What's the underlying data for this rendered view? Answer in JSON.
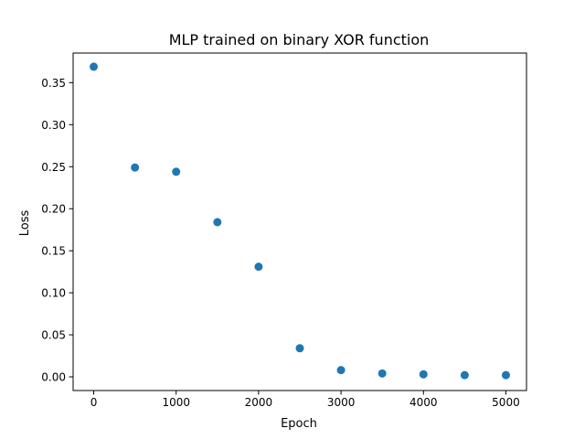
{
  "chart_data": {
    "type": "scatter",
    "title": "MLP trained on binary XOR function",
    "xlabel": "Epoch",
    "ylabel": "Loss",
    "x": [
      0,
      500,
      1000,
      1500,
      2000,
      2500,
      3000,
      3500,
      4000,
      4500,
      5000
    ],
    "y": [
      0.369,
      0.249,
      0.244,
      0.184,
      0.131,
      0.034,
      0.008,
      0.004,
      0.003,
      0.002,
      0.002
    ],
    "xlim": [
      -250,
      5250
    ],
    "ylim": [
      -0.0163,
      0.3852
    ],
    "xticks": [
      0,
      1000,
      2000,
      3000,
      4000,
      5000
    ],
    "xtick_labels": [
      "0",
      "1000",
      "2000",
      "3000",
      "4000",
      "5000"
    ],
    "yticks": [
      0.0,
      0.05,
      0.1,
      0.15,
      0.2,
      0.25,
      0.3,
      0.35
    ],
    "ytick_labels": [
      "0.00",
      "0.05",
      "0.10",
      "0.15",
      "0.20",
      "0.25",
      "0.30",
      "0.35"
    ],
    "grid": false,
    "marker_color": "#1f77b4"
  }
}
